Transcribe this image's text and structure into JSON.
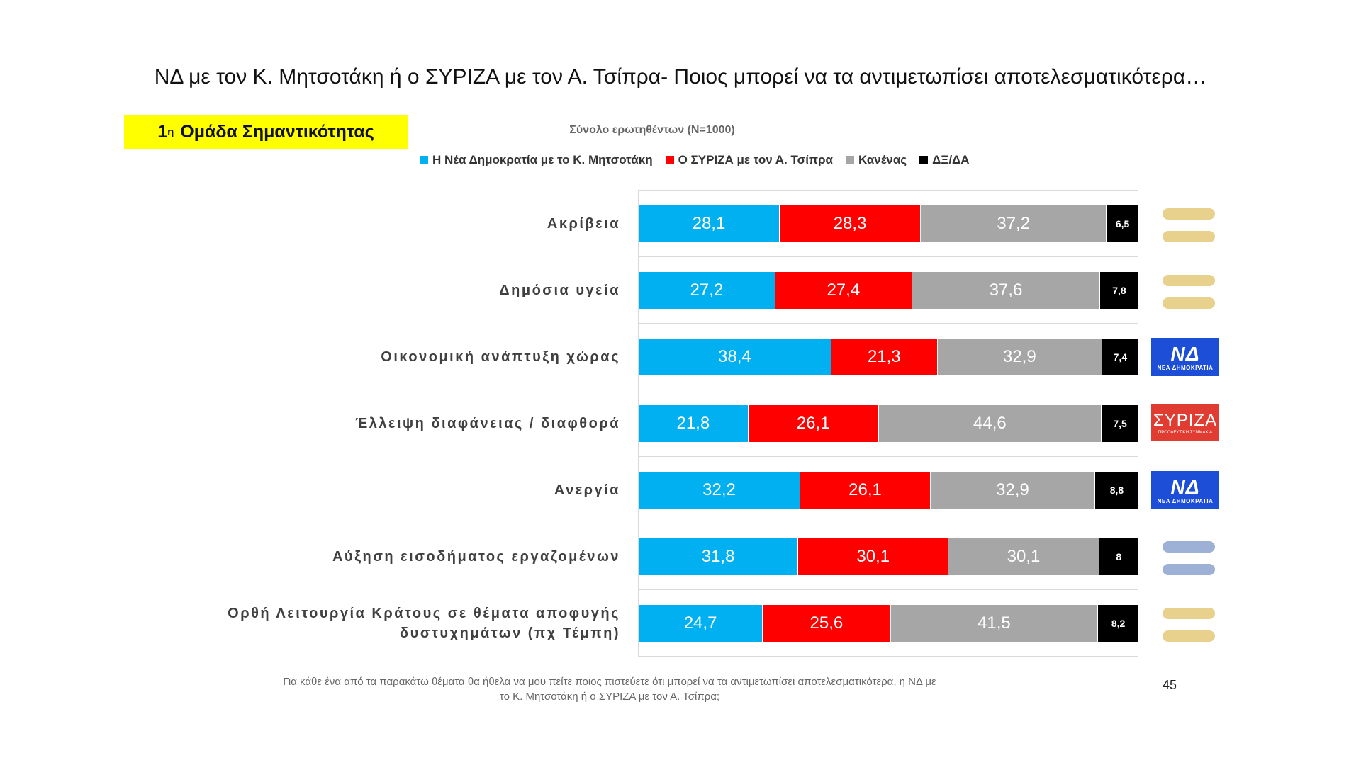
{
  "title": "ΝΔ με τον Κ. Μητσοτάκη ή ο ΣΥΡΙΖΑ με τον Α. Τσίπρα- Ποιος μπορεί να τα αντιμετωπίσει αποτελεσματικότερα…",
  "group_badge": {
    "sup": "η",
    "prefix": "1",
    "text": "Ομάδα Σημαντικότητας"
  },
  "footnote_line1": "Για κάθε ένα από τα παρακάτω θέματα θα ήθελα να μου πείτε ποιος πιστεύετε ότι μπορεί να τα αντιμετωπίσει αποτελεσματικότερα, η ΝΔ με",
  "footnote_line2": "το Κ. Μητσοτάκη ή ο ΣΥΡΙΖΑ με τον Α. Τσίπρα;",
  "page_number": "45",
  "colors": {
    "nd": "#00b0f0",
    "syriza": "#ff0000",
    "none": "#a6a6a6",
    "dk": "#000000",
    "pill_yellow": "#e8d08d",
    "pill_blue": "#9db0d6"
  },
  "side_icons": [
    {
      "type": "pills",
      "color": "pill_yellow",
      "name": "equal-sign-icon"
    },
    {
      "type": "pills",
      "color": "pill_yellow",
      "name": "equal-sign-icon"
    },
    {
      "type": "nd-logo",
      "name": "nea-dimokratia-logo",
      "big": "ΝΔ",
      "small": "ΝΕΑ ΔΗΜΟΚΡΑΤΙΑ"
    },
    {
      "type": "syriza-logo",
      "name": "syriza-logo",
      "big": "ΣΥΡΙΖΑ",
      "small": "ΠΡΟΟΔΕΥΤΙΚΗ ΣΥΜΜΑΧΙΑ"
    },
    {
      "type": "nd-logo",
      "name": "nea-dimokratia-logo",
      "big": "ΝΔ",
      "small": "ΝΕΑ ΔΗΜΟΚΡΑΤΙΑ"
    },
    {
      "type": "pills",
      "color": "pill_blue",
      "name": "equal-sign-icon"
    },
    {
      "type": "pills",
      "color": "pill_yellow",
      "name": "equal-sign-icon"
    }
  ],
  "chart_data": {
    "type": "bar",
    "orientation": "horizontal",
    "stacked": true,
    "subtitle": "Σύνολο ερωτηθέντων (N=1000)",
    "xlim": [
      0,
      100
    ],
    "legend_position": "top",
    "categories": [
      [
        "Ακρίβεια"
      ],
      [
        "Δημόσια υγεία"
      ],
      [
        "Οικονομική ανάπτυξη χώρας"
      ],
      [
        "Έλλειψη διαφάνειας / διαφθορά"
      ],
      [
        "Ανεργία"
      ],
      [
        "Αύξηση εισοδήματος εργαζομένων"
      ],
      [
        "Ορθή Λειτουργία Κράτους σε θέματα αποφυγής",
        "δυστυχημάτων (πχ Τέμπη)"
      ]
    ],
    "series": [
      {
        "name": "Η Νέα Δημοκρατία με το Κ. Μητσοτάκη",
        "color": "#00b0f0",
        "values": [
          28.1,
          27.2,
          38.4,
          21.8,
          32.2,
          31.8,
          24.7
        ],
        "labels": [
          "28,1",
          "27,2",
          "38,4",
          "21,8",
          "32,2",
          "31,8",
          "24,7"
        ]
      },
      {
        "name": "Ο ΣΥΡΙΖΑ με τον Α. Τσίπρα",
        "color": "#ff0000",
        "values": [
          28.3,
          27.4,
          21.3,
          26.1,
          26.1,
          30.1,
          25.6
        ],
        "labels": [
          "28,3",
          "27,4",
          "21,3",
          "26,1",
          "26,1",
          "30,1",
          "25,6"
        ]
      },
      {
        "name": "Κανένας",
        "color": "#a6a6a6",
        "values": [
          37.2,
          37.6,
          32.9,
          44.6,
          32.9,
          30.1,
          41.5
        ],
        "labels": [
          "37,2",
          "37,6",
          "32,9",
          "44,6",
          "32,9",
          "30,1",
          "41,5"
        ]
      },
      {
        "name": "ΔΞ/ΔΑ",
        "color": "#000000",
        "values": [
          6.5,
          7.8,
          7.4,
          7.5,
          8.8,
          8,
          8.2
        ],
        "labels": [
          "6,5",
          "7,8",
          "7,4",
          "7,5",
          "8,8",
          "8",
          "8,2"
        ]
      }
    ]
  }
}
